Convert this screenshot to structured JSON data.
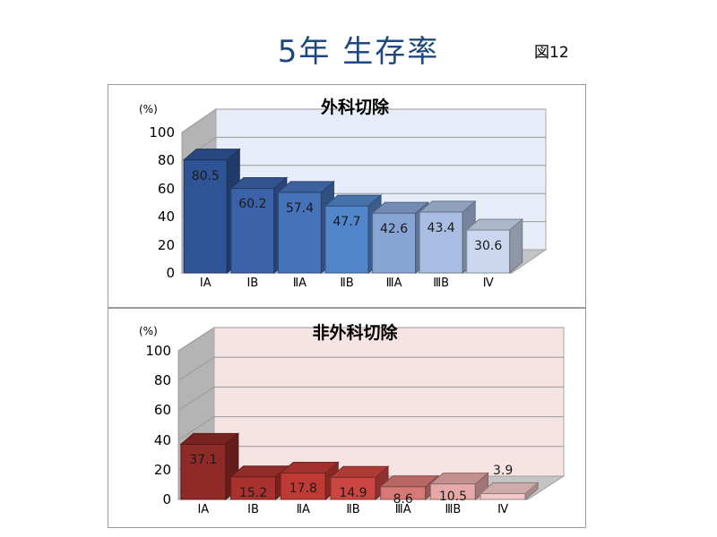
{
  "slide": {
    "title": "5年 生存率",
    "figure_label": "図12"
  },
  "chart_data": [
    {
      "type": "bar",
      "title": "外科切除",
      "unit_label": "(%)",
      "categories": [
        "ⅠA",
        "ⅠB",
        "ⅡA",
        "ⅡB",
        "ⅢA",
        "ⅢB",
        "Ⅳ"
      ],
      "values": [
        80.5,
        60.2,
        57.4,
        47.7,
        42.6,
        43.4,
        30.6
      ],
      "data_labels": [
        "80.5",
        "60.2",
        "57.4",
        "47.7",
        "42.6",
        "43.4",
        "30.6"
      ],
      "ylim": [
        0,
        100
      ],
      "yticks": [
        "0",
        "20",
        "40",
        "60",
        "80",
        "100"
      ],
      "grid": true,
      "style": "3d",
      "bar_colors": [
        "#2f5496",
        "#3b62a8",
        "#4672b9",
        "#5285c9",
        "#87a4d5",
        "#a9bde2",
        "#cad7ee"
      ],
      "wall_color": "#e6ecf8"
    },
    {
      "type": "bar",
      "title": "非外科切除",
      "unit_label": "(%)",
      "categories": [
        "ⅠA",
        "ⅠB",
        "ⅡA",
        "ⅡB",
        "ⅢA",
        "ⅢB",
        "Ⅳ"
      ],
      "values": [
        37.1,
        15.2,
        17.8,
        14.9,
        8.6,
        10.5,
        3.9
      ],
      "data_labels": [
        "37.1",
        "15.2",
        "17.8",
        "14.9",
        "8.6",
        "10.5",
        "3.9"
      ],
      "ylim": [
        0,
        100
      ],
      "yticks": [
        "0",
        "20",
        "40",
        "60",
        "80",
        "100"
      ],
      "grid": true,
      "style": "3d",
      "bar_colors": [
        "#8e2a27",
        "#a9322e",
        "#bf3a35",
        "#cc4641",
        "#d77a77",
        "#e6a9a7",
        "#f1c9c8"
      ],
      "wall_color": "#f6e3e3"
    }
  ]
}
